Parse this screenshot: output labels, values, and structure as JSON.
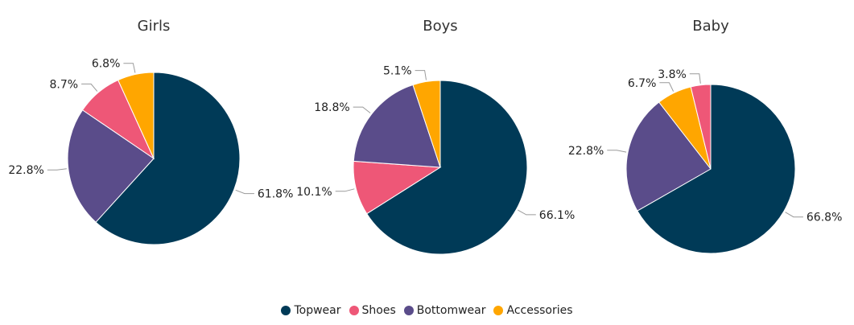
{
  "chart_data": [
    {
      "type": "pie",
      "title": "Girls",
      "categories": [
        "Topwear",
        "Shoes",
        "Bottomwear",
        "Accessories"
      ],
      "values": [
        61.8,
        8.7,
        22.8,
        6.8
      ],
      "labels": [
        "61.8%",
        "8.7%",
        "22.8%",
        "6.8%"
      ],
      "order": [
        "Topwear",
        "Bottomwear",
        "Shoes",
        "Accessories"
      ]
    },
    {
      "type": "pie",
      "title": "Boys",
      "categories": [
        "Topwear",
        "Shoes",
        "Bottomwear",
        "Accessories"
      ],
      "values": [
        66.1,
        10.1,
        18.8,
        5.1
      ],
      "labels": [
        "66.1%",
        "10.1%",
        "18.8%",
        "5.1%"
      ],
      "order": [
        "Topwear",
        "Shoes",
        "Bottomwear",
        "Accessories"
      ]
    },
    {
      "type": "pie",
      "title": "Baby",
      "categories": [
        "Topwear",
        "Shoes",
        "Bottomwear",
        "Accessories"
      ],
      "values": [
        66.8,
        3.8,
        22.8,
        6.7
      ],
      "labels": [
        "66.8%",
        "3.8%",
        "22.8%",
        "6.7%"
      ],
      "order": [
        "Topwear",
        "Bottomwear",
        "Accessories",
        "Shoes"
      ]
    }
  ],
  "legend": {
    "placement": "bottom",
    "items": [
      {
        "label": "Topwear",
        "color": "#003a57"
      },
      {
        "label": "Shoes",
        "color": "#ee5777"
      },
      {
        "label": "Bottomwear",
        "color": "#5a4c8a"
      },
      {
        "label": "Accessories",
        "color": "#ffa600"
      }
    ]
  }
}
